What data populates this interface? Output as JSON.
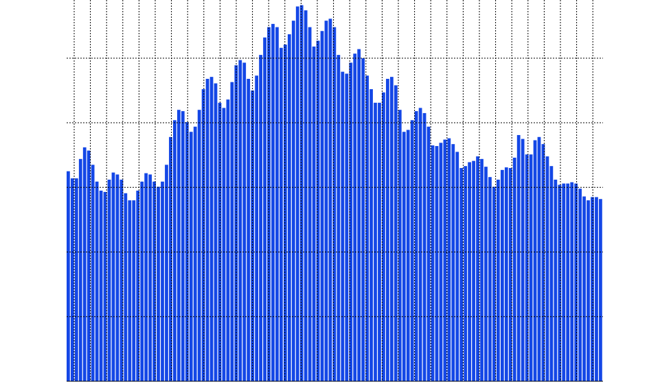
{
  "chart_data": {
    "type": "bar",
    "color": "#1447e6",
    "values": [
      3.25,
      3.14,
      3.14,
      3.44,
      3.62,
      3.57,
      3.35,
      3.09,
      2.95,
      2.93,
      3.12,
      3.23,
      3.2,
      3.12,
      2.91,
      2.8,
      2.8,
      2.95,
      3.09,
      3.22,
      3.2,
      3.09,
      3.01,
      3.09,
      3.35,
      3.78,
      4.04,
      4.2,
      4.18,
      4.01,
      3.86,
      3.94,
      4.2,
      4.52,
      4.68,
      4.71,
      4.61,
      4.31,
      4.23,
      4.36,
      4.63,
      4.89,
      4.97,
      4.93,
      4.68,
      4.5,
      4.73,
      5.05,
      5.32,
      5.48,
      5.53,
      5.48,
      5.16,
      5.21,
      5.37,
      5.58,
      5.8,
      5.82,
      5.74,
      5.48,
      5.18,
      5.27,
      5.42,
      5.58,
      5.61,
      5.48,
      5.05,
      4.79,
      4.76,
      4.93,
      5.07,
      5.14,
      5.0,
      4.73,
      4.52,
      4.31,
      4.31,
      4.47,
      4.68,
      4.71,
      4.58,
      4.2,
      3.86,
      3.89,
      4.04,
      4.18,
      4.23,
      4.15,
      3.94,
      3.65,
      3.64,
      3.69,
      3.74,
      3.76,
      3.67,
      3.55,
      3.3,
      3.33,
      3.39,
      3.41,
      3.48,
      3.44,
      3.32,
      3.16,
      3.01,
      3.12,
      3.27,
      3.31,
      3.3,
      3.46,
      3.81,
      3.75,
      3.51,
      3.51,
      3.73,
      3.78,
      3.67,
      3.48,
      3.33,
      3.12,
      3.04,
      3.06,
      3.06,
      3.08,
      3.06,
      2.98,
      2.86,
      2.8,
      2.85,
      2.85,
      2.82
    ],
    "ylim": [
      0,
      5.9
    ],
    "yticks": [
      1,
      2,
      3,
      4,
      5
    ],
    "grid": true
  }
}
